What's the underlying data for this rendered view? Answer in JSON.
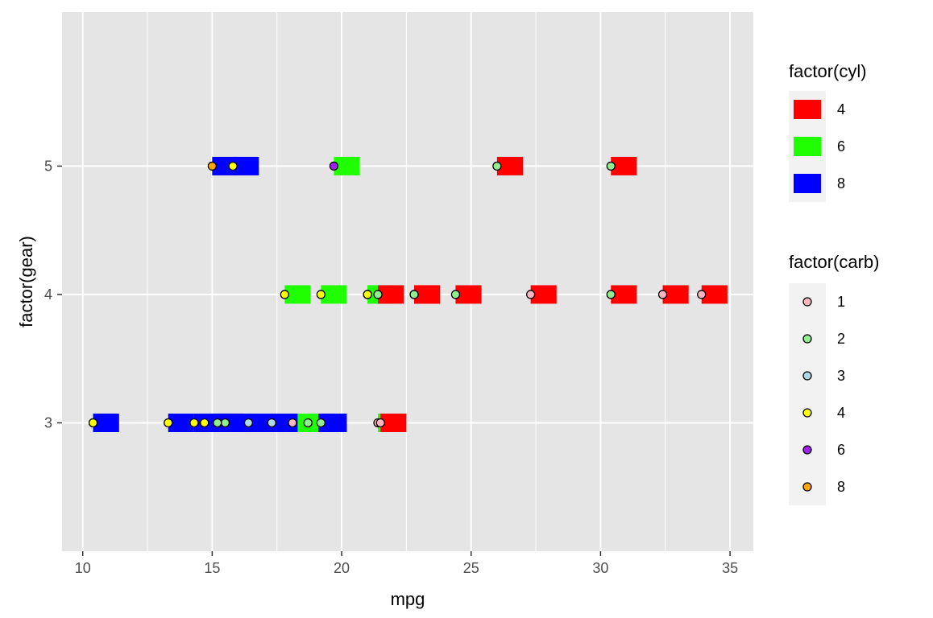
{
  "chart_data": {
    "type": "scatter",
    "xlabel": "mpg",
    "ylabel": "factor(gear)",
    "xlim": [
      9.2,
      35.9
    ],
    "x_ticks": [
      10,
      15,
      20,
      25,
      30,
      35
    ],
    "y_categories": [
      "3",
      "4",
      "5"
    ],
    "grid": true,
    "panel_background": "#e5e5e5",
    "legend_position": "right",
    "fill_legend": {
      "title": "factor(cyl)",
      "items": [
        {
          "label": "4",
          "color": "#ff0000"
        },
        {
          "label": "6",
          "color": "#1fff00"
        },
        {
          "label": "8",
          "color": "#0000ff"
        }
      ]
    },
    "point_legend": {
      "title": "factor(carb)",
      "items": [
        {
          "label": "1",
          "color": "#ffb6c1"
        },
        {
          "label": "2",
          "color": "#90ee90"
        },
        {
          "label": "3",
          "color": "#add8e6"
        },
        {
          "label": "4",
          "color": "#ffff00"
        },
        {
          "label": "6",
          "color": "#a020f0"
        },
        {
          "label": "8",
          "color": "#ffa500"
        }
      ]
    },
    "points": [
      {
        "mpg": 21.0,
        "gear": "4",
        "cyl": "6",
        "carb": "4"
      },
      {
        "mpg": 21.0,
        "gear": "4",
        "cyl": "6",
        "carb": "4"
      },
      {
        "mpg": 22.8,
        "gear": "4",
        "cyl": "4",
        "carb": "2"
      },
      {
        "mpg": 21.4,
        "gear": "3",
        "cyl": "6",
        "carb": "1"
      },
      {
        "mpg": 18.7,
        "gear": "3",
        "cyl": "8",
        "carb": "2"
      },
      {
        "mpg": 18.1,
        "gear": "3",
        "cyl": "6",
        "carb": "1"
      },
      {
        "mpg": 14.3,
        "gear": "3",
        "cyl": "8",
        "carb": "4"
      },
      {
        "mpg": 24.4,
        "gear": "4",
        "cyl": "4",
        "carb": "2"
      },
      {
        "mpg": 22.8,
        "gear": "4",
        "cyl": "4",
        "carb": "2"
      },
      {
        "mpg": 19.2,
        "gear": "4",
        "cyl": "6",
        "carb": "4"
      },
      {
        "mpg": 17.8,
        "gear": "4",
        "cyl": "6",
        "carb": "4"
      },
      {
        "mpg": 16.4,
        "gear": "3",
        "cyl": "8",
        "carb": "3"
      },
      {
        "mpg": 17.3,
        "gear": "3",
        "cyl": "8",
        "carb": "3"
      },
      {
        "mpg": 15.2,
        "gear": "3",
        "cyl": "8",
        "carb": "3"
      },
      {
        "mpg": 10.4,
        "gear": "3",
        "cyl": "8",
        "carb": "4"
      },
      {
        "mpg": 10.4,
        "gear": "3",
        "cyl": "8",
        "carb": "4"
      },
      {
        "mpg": 14.7,
        "gear": "3",
        "cyl": "8",
        "carb": "4"
      },
      {
        "mpg": 32.4,
        "gear": "4",
        "cyl": "4",
        "carb": "1"
      },
      {
        "mpg": 30.4,
        "gear": "4",
        "cyl": "4",
        "carb": "2"
      },
      {
        "mpg": 33.9,
        "gear": "4",
        "cyl": "4",
        "carb": "1"
      },
      {
        "mpg": 21.5,
        "gear": "3",
        "cyl": "4",
        "carb": "1"
      },
      {
        "mpg": 15.5,
        "gear": "3",
        "cyl": "8",
        "carb": "2"
      },
      {
        "mpg": 15.2,
        "gear": "3",
        "cyl": "8",
        "carb": "2"
      },
      {
        "mpg": 13.3,
        "gear": "3",
        "cyl": "8",
        "carb": "4"
      },
      {
        "mpg": 19.2,
        "gear": "3",
        "cyl": "8",
        "carb": "2"
      },
      {
        "mpg": 27.3,
        "gear": "4",
        "cyl": "4",
        "carb": "1"
      },
      {
        "mpg": 26.0,
        "gear": "5",
        "cyl": "4",
        "carb": "2"
      },
      {
        "mpg": 30.4,
        "gear": "5",
        "cyl": "4",
        "carb": "2"
      },
      {
        "mpg": 15.8,
        "gear": "5",
        "cyl": "8",
        "carb": "4"
      },
      {
        "mpg": 19.7,
        "gear": "5",
        "cyl": "6",
        "carb": "6"
      },
      {
        "mpg": 15.0,
        "gear": "5",
        "cyl": "8",
        "carb": "8"
      },
      {
        "mpg": 21.4,
        "gear": "4",
        "cyl": "4",
        "carb": "2"
      }
    ]
  }
}
